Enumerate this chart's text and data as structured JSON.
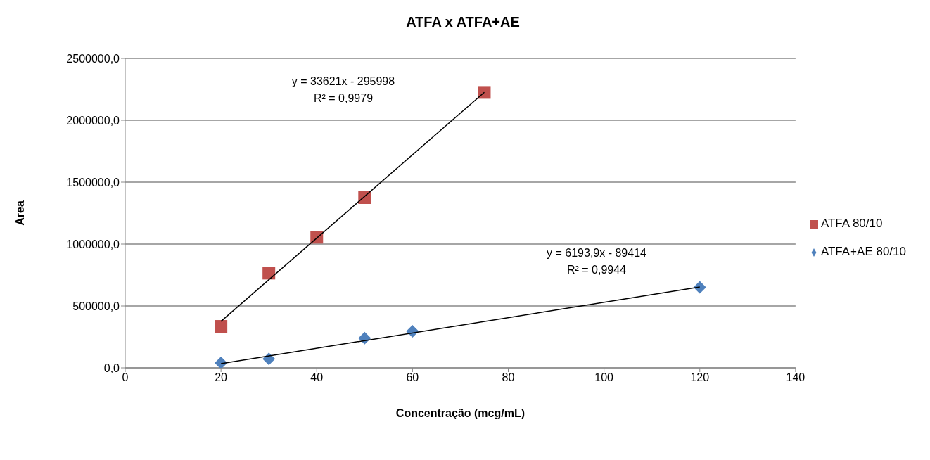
{
  "chart_data": {
    "type": "scatter",
    "title": "ATFA x ATFA+AE",
    "xlabel": "Concentração (mcg/mL)",
    "ylabel": "Area",
    "xlim": [
      0,
      140
    ],
    "xticks": [
      0,
      20,
      40,
      60,
      80,
      100,
      120,
      140
    ],
    "ylim": [
      0,
      2500000
    ],
    "yticks": [
      {
        "value": 0,
        "label": "0,0"
      },
      {
        "value": 500000,
        "label": "500000,0"
      },
      {
        "value": 1000000,
        "label": "1000000,0"
      },
      {
        "value": 1500000,
        "label": "1500000,0"
      },
      {
        "value": 2000000,
        "label": "2000000,0"
      },
      {
        "value": 2500000,
        "label": "2500000,0"
      }
    ],
    "grid": "y",
    "legend": "right",
    "series": [
      {
        "name": "ATFA 80/10",
        "marker": "square",
        "color": "#c0504d",
        "x": [
          20,
          30,
          40,
          50,
          75
        ],
        "values": [
          335000,
          765000,
          1055000,
          1375000,
          2225000
        ]
      },
      {
        "name": "ATFA+AE 80/10",
        "marker": "diamond",
        "color": "#4f81bd",
        "x": [
          20,
          30,
          50,
          60,
          120
        ],
        "values": [
          40000,
          72000,
          240000,
          295000,
          650000
        ]
      },
      {
        "type": "line",
        "color": "#000000",
        "x": [
          20,
          75
        ],
        "values": [
          376000,
          2226000
        ]
      },
      {
        "type": "line",
        "color": "#000000",
        "x": [
          20,
          120
        ],
        "values": [
          34000,
          654000
        ]
      }
    ],
    "annotations": [
      "y = 33621x - 295998",
      "R² = 0,9979",
      "y = 6193,9x - 89414",
      "R² = 0,9944"
    ]
  }
}
